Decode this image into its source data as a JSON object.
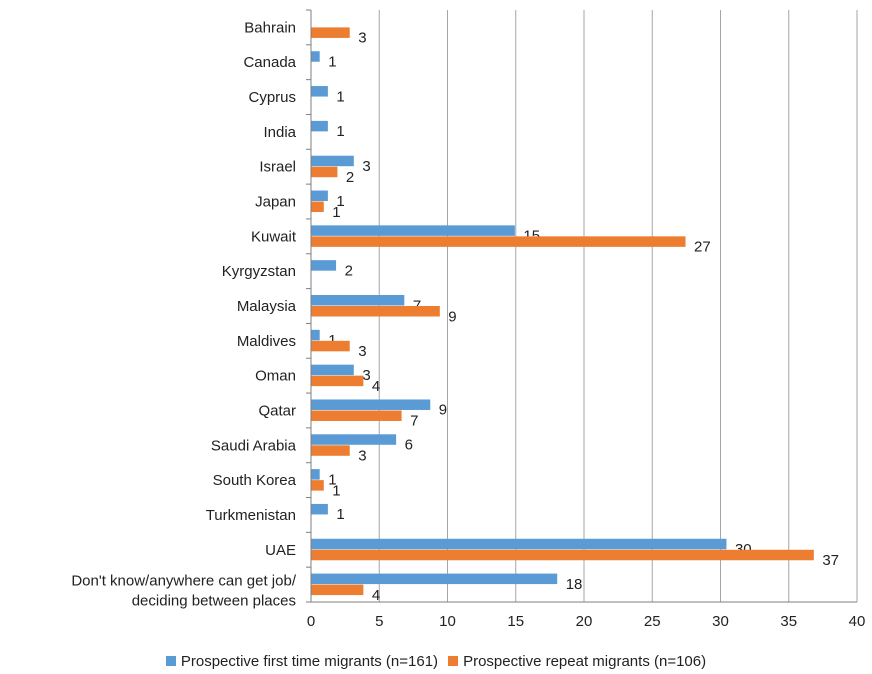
{
  "chart_data": {
    "type": "bar",
    "orientation": "horizontal",
    "categories": [
      "Bahrain",
      "Canada",
      "Cyprus",
      "India",
      "Israel",
      "Japan",
      "Kuwait",
      "Kyrgyzstan",
      "Malaysia",
      "Maldives",
      "Oman",
      "Qatar",
      "Saudi Arabia",
      "South Korea",
      "Turkmenistan",
      "UAE",
      [
        "Don't know/anywhere can get job/",
        "deciding between places"
      ]
    ],
    "series": [
      {
        "name": "Prospective first time migrants (n=161)",
        "color": "#5B9BD5",
        "values": [
          0,
          1,
          1,
          1,
          3,
          1,
          15,
          2,
          7,
          1,
          3,
          9,
          6,
          1,
          1,
          30,
          18
        ],
        "bar_lengths": [
          0,
          0.6,
          1.2,
          1.2,
          3.1,
          1.2,
          14.9,
          1.8,
          6.8,
          0.6,
          3.1,
          8.7,
          6.2,
          0.6,
          1.2,
          30.4,
          18
        ]
      },
      {
        "name": "Prospective repeat migrants (n=106)",
        "color": "#ED7D31",
        "values": [
          3,
          null,
          null,
          null,
          2,
          1,
          27,
          null,
          9,
          3,
          4,
          7,
          3,
          1,
          null,
          37,
          4
        ],
        "bar_lengths": [
          2.8,
          null,
          null,
          null,
          1.9,
          0.9,
          27.4,
          null,
          9.4,
          2.8,
          3.8,
          6.6,
          2.8,
          0.9,
          null,
          36.8,
          3.8
        ]
      }
    ],
    "xlim": [
      0,
      40
    ],
    "xticks": [
      0,
      5,
      10,
      15,
      20,
      25,
      30,
      35,
      40
    ],
    "grid": "vertical",
    "legend_position": "bottom",
    "title": "",
    "xlabel": "",
    "ylabel": ""
  }
}
